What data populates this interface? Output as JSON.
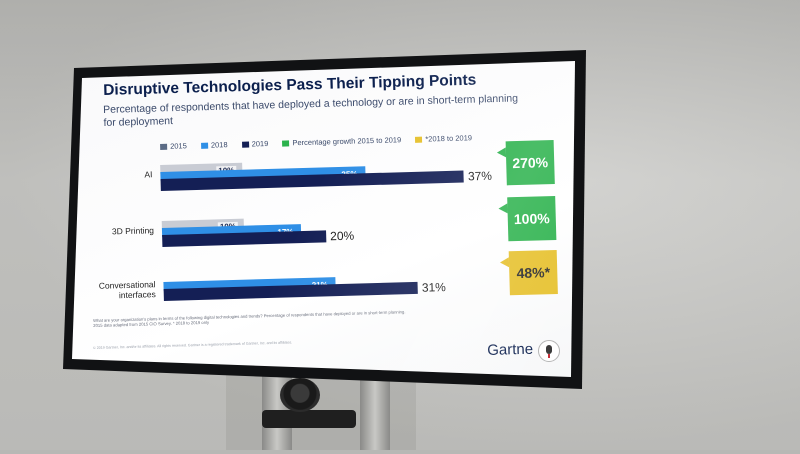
{
  "slide": {
    "title": "Disruptive Technologies Pass Their Tipping Points",
    "subtitle": "Percentage of respondents that have deployed a technology or are in short-term planning for deployment",
    "legend": [
      {
        "label": "2015",
        "color": "#5b6b85"
      },
      {
        "label": "2018",
        "color": "#2f8fe6"
      },
      {
        "label": "2019",
        "color": "#141f55"
      },
      {
        "label": "Percentage growth 2015 to 2019",
        "color": "#2bb24c"
      },
      {
        "label": "*2018 to 2019",
        "color": "#e6c02a"
      }
    ],
    "footnote": "What are your organization's plans in terms of the following digital technologies and trends? Percentage of respondents that have deployed or are in short-term planning. 2015 data adapted from 2015 CIO Survey. * 2018 to 2019 only",
    "copyright": "© 2019 Gartner, Inc. and/or its affiliates. All rights reserved. Gartner is a registered trademark of Gartner, Inc. and its affiliates.",
    "logo_text": "Gartne"
  },
  "chart_data": {
    "type": "bar",
    "categories": [
      "AI",
      "3D Printing",
      "Conversational interfaces"
    ],
    "series": [
      {
        "name": "2015",
        "values": [
          10,
          10,
          null
        ]
      },
      {
        "name": "2018",
        "values": [
          25,
          17,
          21
        ]
      },
      {
        "name": "2019",
        "values": [
          37,
          20,
          31
        ]
      }
    ],
    "bar_labels": {
      "2015": [
        "10%",
        "10%",
        ""
      ],
      "2018": [
        "25%",
        "17%",
        "21%"
      ],
      "2019": [
        "37%",
        "20%",
        "31%"
      ]
    },
    "growth": [
      "270%",
      "100%",
      "48%*"
    ],
    "growth_colors": [
      "#2bb24c",
      "#2bb24c",
      "#e6c02a"
    ]
  }
}
